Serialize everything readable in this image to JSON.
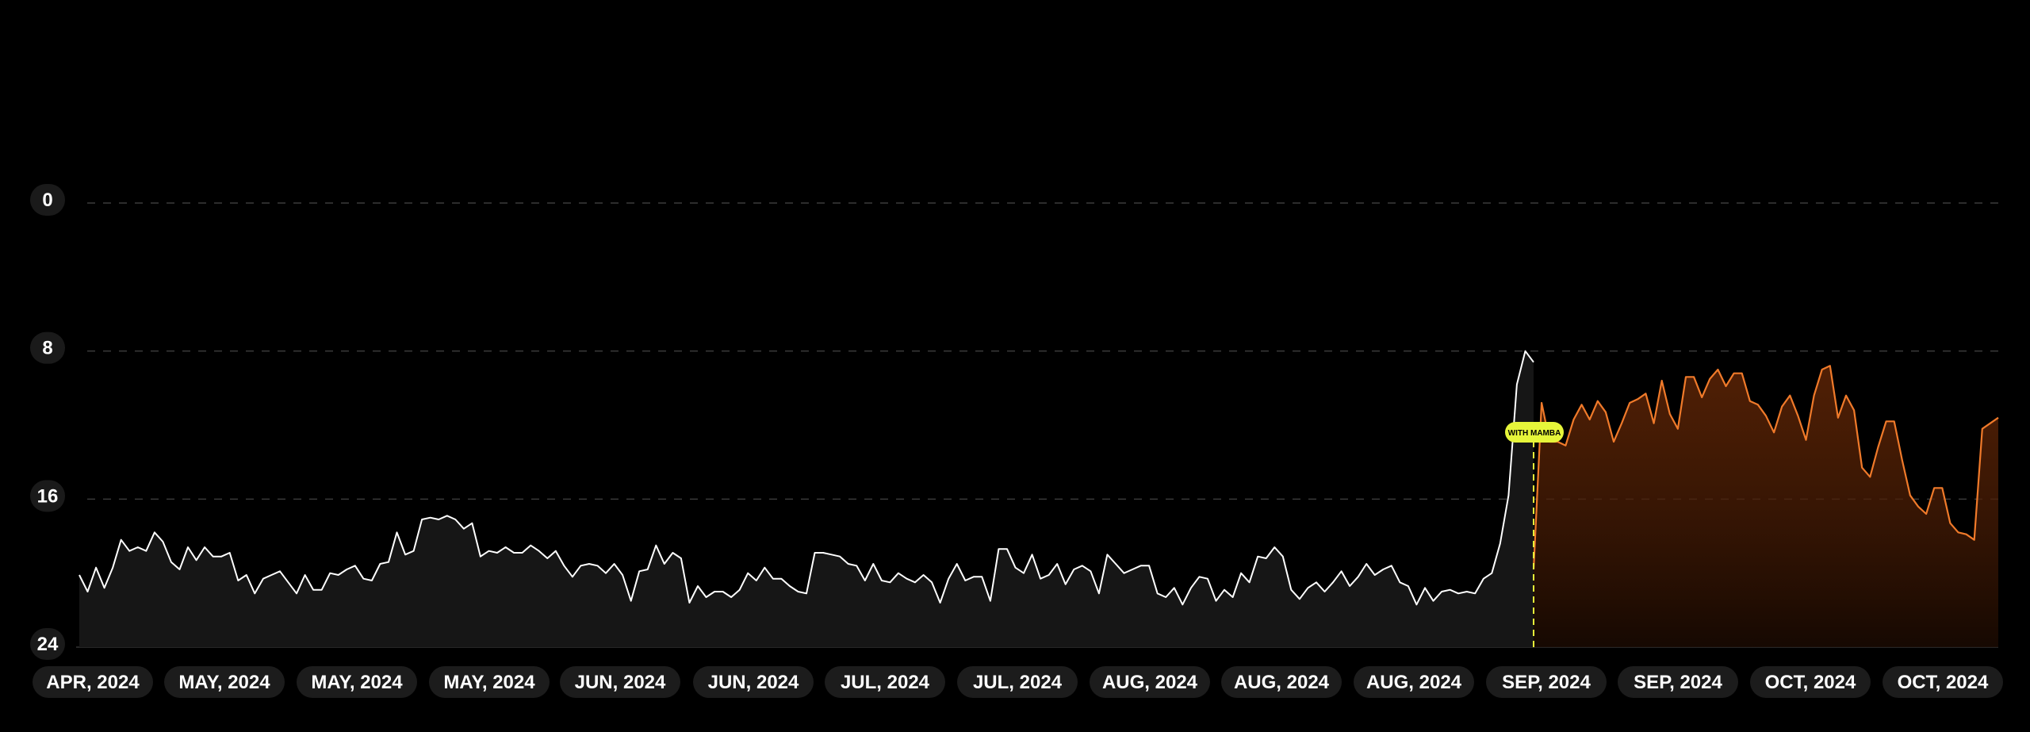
{
  "chart_data": {
    "type": "line",
    "title": "",
    "xlabel": "",
    "ylabel": "",
    "y_inverted": true,
    "ylim": [
      0,
      24
    ],
    "yticks": [
      0,
      8,
      16,
      24
    ],
    "grid": true,
    "x_tick_labels": [
      "APR, 2024",
      "MAY, 2024",
      "MAY, 2024",
      "MAY, 2024",
      "JUN, 2024",
      "JUN, 2024",
      "JUL, 2024",
      "JUL, 2024",
      "AUG, 2024",
      "AUG, 2024",
      "AUG, 2024",
      "SEP, 2024",
      "SEP, 2024",
      "OCT, 2024",
      "OCT, 2024"
    ],
    "annotation": {
      "label": "WITH MAMBA",
      "color": "#e6f53a"
    },
    "colors": {
      "before": "#ffffff",
      "after": "#f07a2a"
    },
    "series": [
      {
        "values": [
          20.1,
          21.0,
          19.7,
          20.8,
          19.7,
          18.2,
          18.8,
          18.6,
          18.8,
          17.8,
          18.3,
          19.4,
          19.8,
          18.6,
          19.3,
          18.6,
          19.1,
          19.1,
          18.9,
          20.4,
          20.1,
          21.1,
          20.3,
          20.1,
          19.9,
          20.5,
          21.1,
          20.1,
          20.9,
          20.9,
          20.0,
          20.1,
          19.8,
          19.6,
          20.3,
          20.4,
          19.5,
          19.4,
          17.8,
          19.0,
          18.8,
          17.1,
          17.0,
          17.1,
          16.9,
          17.1,
          17.6,
          17.3,
          19.1,
          18.8,
          18.9,
          18.6,
          18.9,
          18.9,
          18.5,
          18.8,
          19.2,
          18.8,
          19.6,
          20.2,
          19.6,
          19.5,
          19.6,
          20.0,
          19.5,
          20.1,
          21.5,
          19.9,
          19.8,
          18.5,
          19.5,
          18.9,
          19.2,
          21.6,
          20.7,
          21.3,
          21.0,
          21.0,
          21.3,
          20.9,
          20.0,
          20.4,
          19.7,
          20.3,
          20.3,
          20.7,
          21.0,
          21.1,
          18.9,
          18.9,
          19.0,
          19.1,
          19.5,
          19.6,
          20.4,
          19.5,
          20.4,
          20.5,
          20.0,
          20.3,
          20.5,
          20.1,
          20.5,
          21.6,
          20.3,
          19.5,
          20.4,
          20.2,
          20.2,
          21.5,
          18.7,
          18.7,
          19.7,
          20.0,
          19.0,
          20.3,
          20.1,
          19.5,
          20.6,
          19.8,
          19.6,
          19.9,
          21.1,
          19.0,
          19.5,
          20.0,
          19.8,
          19.6,
          19.6,
          21.1,
          21.3,
          20.8,
          21.7,
          20.8,
          20.2,
          20.3,
          21.5,
          20.9,
          21.3,
          20.0
        ]
      },
      {
        "values": [
          20.5,
          19.1,
          19.2,
          18.6,
          19.1,
          20.9,
          21.4,
          20.8,
          20.5,
          21.0,
          20.5,
          19.9,
          20.7,
          20.2,
          19.5,
          20.1,
          19.8,
          19.6,
          20.5,
          20.7,
          21.7,
          20.8,
          21.5,
          21.0,
          20.9,
          21.1,
          21.0,
          21.1,
          20.3,
          20.0,
          18.4,
          15.8,
          9.8,
          8.0,
          8.6
        ]
      },
      {
        "values": [
          19.8,
          10.8,
          12.9,
          12.9,
          13.1,
          11.7,
          10.9,
          11.7,
          10.7,
          11.3,
          12.9,
          11.9,
          10.8,
          10.6,
          10.3,
          11.9,
          9.6,
          11.4,
          12.2,
          9.4,
          9.4,
          10.5,
          9.5,
          9.0,
          9.9,
          9.2,
          9.2,
          10.7,
          10.9,
          11.5,
          12.4,
          11.0,
          10.4,
          11.5,
          12.8,
          10.4,
          9.0,
          8.8,
          11.6,
          10.4,
          11.2,
          14.3,
          14.8,
          13.2,
          11.8,
          11.8,
          13.9,
          15.8,
          16.4,
          16.8,
          15.4,
          15.4,
          17.3,
          17.8,
          17.9,
          18.2,
          12.2,
          11.9,
          11.6
        ]
      }
    ]
  }
}
